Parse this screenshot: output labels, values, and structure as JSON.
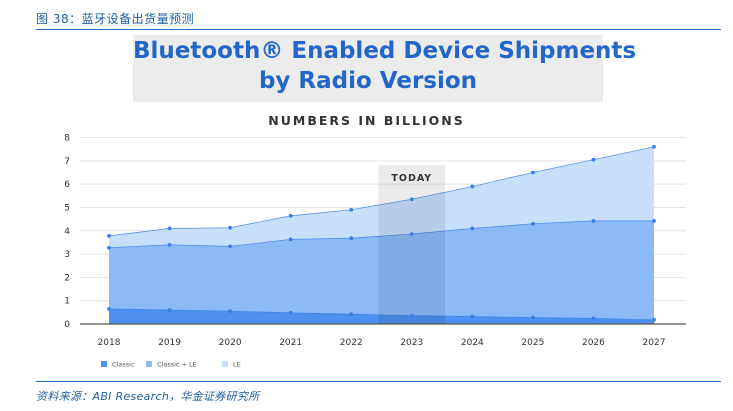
{
  "caption": "图 38：蓝牙设备出货量预测",
  "source": "资料来源：ABI Research，华金证券研究所",
  "colors": {
    "classic": "#4d90f0",
    "classic_le": "#8cbaf7",
    "le": "#c7dffb",
    "points": "#3a7fe6",
    "title": "#2366c9",
    "today_band": "#000000"
  },
  "chart_data": {
    "type": "area",
    "title_line1": "Bluetooth® Enabled Device Shipments",
    "title_line2": "by Radio Version",
    "subtitle": "NUMBERS IN BILLIONS",
    "categories": [
      "2018",
      "2019",
      "2020",
      "2021",
      "2022",
      "2023",
      "2024",
      "2025",
      "2026",
      "2027"
    ],
    "y_ticks": [
      "0",
      "1",
      "2",
      "3",
      "4",
      "5",
      "6",
      "7",
      "8"
    ],
    "ylim": [
      0,
      8
    ],
    "stacked": true,
    "series": [
      {
        "name": "Classic",
        "key": "classic",
        "values": [
          0.65,
          0.6,
          0.55,
          0.48,
          0.42,
          0.36,
          0.32,
          0.28,
          0.24,
          0.18
        ]
      },
      {
        "name": "Classic + LE",
        "key": "classic_le",
        "values": [
          2.62,
          2.8,
          2.78,
          3.15,
          3.26,
          3.5,
          3.78,
          4.02,
          4.18,
          4.24
        ]
      },
      {
        "name": "LE",
        "key": "le",
        "values": [
          0.51,
          0.7,
          0.8,
          1.01,
          1.22,
          1.49,
          1.8,
          2.2,
          2.63,
          3.18
        ]
      }
    ],
    "totals_upper": {
      "classic": [
        0.65,
        0.6,
        0.55,
        0.48,
        0.42,
        0.36,
        0.32,
        0.28,
        0.24,
        0.18
      ],
      "classic_le": [
        3.27,
        3.4,
        3.33,
        3.63,
        3.68,
        3.86,
        4.1,
        4.3,
        4.42,
        4.42
      ],
      "le": [
        3.78,
        4.1,
        4.13,
        4.64,
        4.9,
        5.35,
        5.9,
        6.5,
        7.05,
        7.6
      ]
    },
    "annotation": {
      "text": "TODAY",
      "between": [
        "2022",
        "2023"
      ]
    },
    "legend": [
      "Classic",
      "Classic + LE",
      "LE"
    ],
    "legend_position": "bottom-left"
  }
}
